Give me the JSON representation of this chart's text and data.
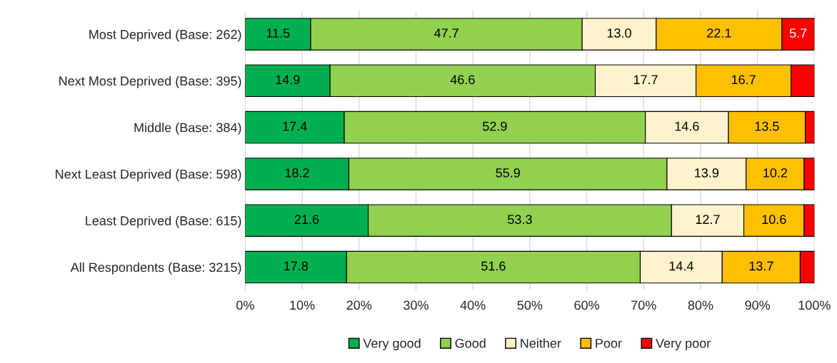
{
  "chart_data": {
    "type": "bar",
    "orientation": "horizontal",
    "stacked": true,
    "categories": [
      "Most Deprived (Base: 262)",
      "Next Most Deprived (Base: 395)",
      "Middle (Base: 384)",
      "Next Least Deprived (Base: 598)",
      "Least Deprived (Base: 615)",
      "All Respondents (Base: 3215)"
    ],
    "series": [
      {
        "name": "Very good",
        "color": "#00b050",
        "values": [
          11.5,
          14.9,
          17.4,
          18.2,
          21.6,
          17.8
        ],
        "value_labels": [
          "11.5",
          "14.9",
          "17.4",
          "18.2",
          "21.6",
          "17.8"
        ]
      },
      {
        "name": "Good",
        "color": "#92d050",
        "values": [
          47.7,
          46.6,
          52.9,
          55.9,
          53.3,
          51.6
        ],
        "value_labels": [
          "47.7",
          "46.6",
          "52.9",
          "55.9",
          "53.3",
          "51.6"
        ]
      },
      {
        "name": "Neither",
        "color": "#fff2cc",
        "values": [
          13.0,
          17.7,
          14.6,
          13.9,
          12.7,
          14.4
        ],
        "value_labels": [
          "13.0",
          "17.7",
          "14.6",
          "13.9",
          "12.7",
          "14.4"
        ]
      },
      {
        "name": "Poor",
        "color": "#ffc000",
        "values": [
          22.1,
          16.7,
          13.5,
          10.2,
          10.6,
          13.7
        ],
        "value_labels": [
          "22.1",
          "16.7",
          "13.5",
          "10.2",
          "10.6",
          "13.7"
        ]
      },
      {
        "name": "Very poor",
        "color": "#ff0000",
        "values": [
          5.7,
          4.1,
          1.6,
          1.8,
          1.8,
          2.5
        ],
        "value_labels": [
          "5.7",
          null,
          null,
          null,
          null,
          null
        ]
      }
    ],
    "xlim": [
      0,
      100
    ],
    "xticks": [
      {
        "value": 0,
        "label": "0%"
      },
      {
        "value": 10,
        "label": "10%"
      },
      {
        "value": 20,
        "label": "20%"
      },
      {
        "value": 30,
        "label": "30%"
      },
      {
        "value": 40,
        "label": "40%"
      },
      {
        "value": 50,
        "label": "50%"
      },
      {
        "value": 60,
        "label": "60%"
      },
      {
        "value": 70,
        "label": "70%"
      },
      {
        "value": 80,
        "label": "80%"
      },
      {
        "value": 90,
        "label": "90%"
      },
      {
        "value": 100,
        "label": "100%"
      }
    ],
    "grid": "x",
    "legend": "bottom"
  }
}
